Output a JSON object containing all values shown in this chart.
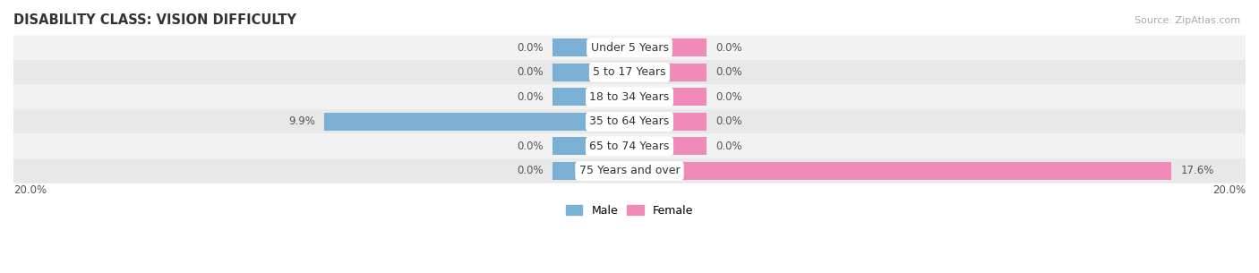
{
  "title": "DISABILITY CLASS: VISION DIFFICULTY",
  "source": "Source: ZipAtlas.com",
  "categories": [
    "Under 5 Years",
    "5 to 17 Years",
    "18 to 34 Years",
    "35 to 64 Years",
    "65 to 74 Years",
    "75 Years and over"
  ],
  "male_values": [
    0.0,
    0.0,
    0.0,
    9.9,
    0.0,
    0.0
  ],
  "female_values": [
    0.0,
    0.0,
    0.0,
    0.0,
    0.0,
    17.6
  ],
  "male_color": "#7bafd4",
  "female_color": "#f08ab8",
  "row_bg_even": "#f2f2f2",
  "row_bg_odd": "#e8e8e8",
  "xlim": 20.0,
  "stub_size": 2.5,
  "title_fontsize": 10.5,
  "value_fontsize": 8.5,
  "cat_fontsize": 9,
  "legend_fontsize": 9,
  "source_fontsize": 8,
  "figsize": [
    14.06,
    3.05
  ],
  "dpi": 100
}
